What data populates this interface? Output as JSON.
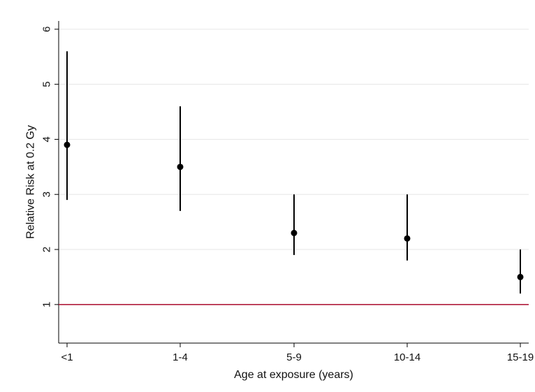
{
  "chart_data": {
    "type": "scatter",
    "subtype": "point-estimates-with-confidence-intervals",
    "xlabel": "Age at exposure (years)",
    "ylabel": "Relative Risk at 0.2 Gy",
    "categories": [
      "<1",
      "1-4",
      "5-9",
      "10-14",
      "15-19"
    ],
    "estimates": [
      3.9,
      3.5,
      2.3,
      2.2,
      1.5
    ],
    "ci_lower": [
      2.9,
      2.7,
      1.9,
      1.8,
      1.2
    ],
    "ci_upper": [
      5.6,
      4.6,
      3.0,
      3.0,
      2.0
    ],
    "ylim": [
      0.3,
      6.15
    ],
    "yticks": [
      1,
      2,
      3,
      4,
      5,
      6
    ],
    "grid": "horizontal",
    "reference_line": {
      "y": 1,
      "color": "#b01c3c"
    },
    "marker_color": "#000000",
    "errorbar_color": "#000000"
  }
}
